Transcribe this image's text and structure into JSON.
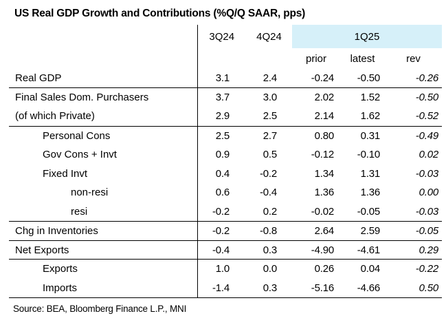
{
  "title": "US Real GDP Growth and Contributions (%Q/Q SAAR, pps)",
  "source": "Source: BEA, Bloomberg Finance L.P., MNI",
  "highlight_color": "#d6f0f9",
  "table": {
    "quarter_headers": [
      "3Q24",
      "4Q24",
      "1Q25"
    ],
    "sub_headers": [
      "prior",
      "latest",
      "rev"
    ],
    "rows": [
      {
        "label": "Real GDP",
        "values": [
          "3.1",
          "2.4",
          "-0.24",
          "-0.50",
          "-0.26"
        ]
      },
      {
        "label": "Final Sales Dom. Purchasers",
        "values": [
          "3.7",
          "3.0",
          "2.02",
          "1.52",
          "-0.50"
        ]
      },
      {
        "label": "(of which Private)",
        "values": [
          "2.9",
          "2.5",
          "2.14",
          "1.62",
          "-0.52"
        ]
      },
      {
        "label": "Personal Cons",
        "values": [
          "2.5",
          "2.7",
          "0.80",
          "0.31",
          "-0.49"
        ]
      },
      {
        "label": "Gov Cons + Invt",
        "values": [
          "0.9",
          "0.5",
          "-0.12",
          "-0.10",
          "0.02"
        ]
      },
      {
        "label": "Fixed Invt",
        "values": [
          "0.4",
          "-0.2",
          "1.34",
          "1.31",
          "-0.03"
        ]
      },
      {
        "label": "non-resi",
        "values": [
          "0.6",
          "-0.4",
          "1.36",
          "1.36",
          "0.00"
        ]
      },
      {
        "label": "resi",
        "values": [
          "-0.2",
          "0.2",
          "-0.02",
          "-0.05",
          "-0.03"
        ]
      },
      {
        "label": "Chg in Inventories",
        "values": [
          "-0.2",
          "-0.8",
          "2.64",
          "2.59",
          "-0.05"
        ]
      },
      {
        "label": "Net Exports",
        "values": [
          "-0.4",
          "0.3",
          "-4.90",
          "-4.61",
          "0.29"
        ]
      },
      {
        "label": "Exports",
        "values": [
          "1.0",
          "0.0",
          "0.26",
          "0.04",
          "-0.22"
        ]
      },
      {
        "label": "Imports",
        "values": [
          "-1.4",
          "0.3",
          "-5.16",
          "-4.66",
          "0.50"
        ]
      }
    ]
  },
  "chart_data": {
    "type": "table",
    "title": "US Real GDP Growth and Contributions (%Q/Q SAAR, pps)",
    "columns": [
      "",
      "3Q24",
      "4Q24",
      "1Q25 prior",
      "1Q25 latest",
      "1Q25 rev"
    ],
    "rows": [
      [
        "Real GDP",
        3.1,
        2.4,
        -0.24,
        -0.5,
        -0.26
      ],
      [
        "Final Sales Dom. Purchasers",
        3.7,
        3.0,
        2.02,
        1.52,
        -0.5
      ],
      [
        "(of which Private)",
        2.9,
        2.5,
        2.14,
        1.62,
        -0.52
      ],
      [
        "Personal Cons",
        2.5,
        2.7,
        0.8,
        0.31,
        -0.49
      ],
      [
        "Gov Cons + Invt",
        0.9,
        0.5,
        -0.12,
        -0.1,
        0.02
      ],
      [
        "Fixed Invt",
        0.4,
        -0.2,
        1.34,
        1.31,
        -0.03
      ],
      [
        "non-resi",
        0.6,
        -0.4,
        1.36,
        1.36,
        0.0
      ],
      [
        "resi",
        -0.2,
        0.2,
        -0.02,
        -0.05,
        -0.03
      ],
      [
        "Chg in Inventories",
        -0.2,
        -0.8,
        2.64,
        2.59,
        -0.05
      ],
      [
        "Net Exports",
        -0.4,
        0.3,
        -4.9,
        -4.61,
        0.29
      ],
      [
        "Exports",
        1.0,
        0.0,
        0.26,
        0.04,
        -0.22
      ],
      [
        "Imports",
        -1.4,
        0.3,
        -5.16,
        -4.66,
        0.5
      ]
    ],
    "source": "Source: BEA, Bloomberg Finance L.P., MNI"
  }
}
